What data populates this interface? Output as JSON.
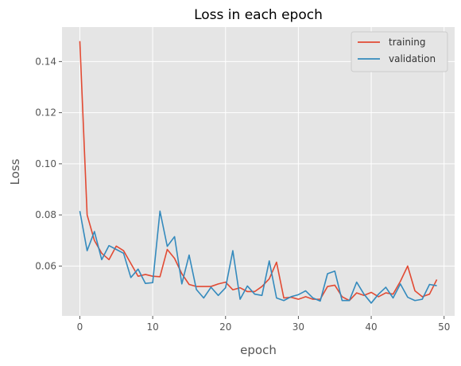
{
  "chart_data": {
    "type": "line",
    "title": "Loss in each epoch",
    "xlabel": "epoch",
    "ylabel": "Loss",
    "xlim": [
      -2.45,
      51.45
    ],
    "ylim": [
      0.0405,
      0.1535
    ],
    "xticks": [
      0,
      10,
      20,
      30,
      40,
      50
    ],
    "yticks": [
      0.06,
      0.08,
      0.1,
      0.12,
      0.14
    ],
    "ytick_labels": [
      "0.06",
      "0.08",
      "0.10",
      "0.12",
      "0.14"
    ],
    "grid": true,
    "legend_position": "top-right",
    "series": [
      {
        "name": "training",
        "color": "#E24A33",
        "x": [
          0,
          1,
          2,
          3,
          4,
          5,
          6,
          7,
          8,
          9,
          10,
          11,
          12,
          13,
          14,
          15,
          16,
          17,
          18,
          19,
          20,
          21,
          22,
          23,
          24,
          25,
          26,
          27,
          28,
          29,
          30,
          31,
          32,
          33,
          34,
          35,
          36,
          37,
          38,
          39,
          40,
          41,
          42,
          43,
          44,
          45,
          46,
          47,
          48,
          49
        ],
        "values": [
          0.148,
          0.08,
          0.07,
          0.065,
          0.0625,
          0.0678,
          0.066,
          0.061,
          0.056,
          0.0567,
          0.056,
          0.0558,
          0.0665,
          0.063,
          0.057,
          0.0528,
          0.052,
          0.052,
          0.052,
          0.053,
          0.0537,
          0.0507,
          0.0515,
          0.05,
          0.05,
          0.052,
          0.055,
          0.0615,
          0.0475,
          0.0478,
          0.047,
          0.048,
          0.047,
          0.047,
          0.052,
          0.0525,
          0.048,
          0.0465,
          0.0495,
          0.0485,
          0.0497,
          0.048,
          0.0495,
          0.049,
          0.054,
          0.06,
          0.0503,
          0.048,
          0.049,
          0.0547
        ]
      },
      {
        "name": "validation",
        "color": "#348ABD",
        "x": [
          0,
          1,
          2,
          3,
          4,
          5,
          6,
          7,
          8,
          9,
          10,
          11,
          12,
          13,
          14,
          15,
          16,
          17,
          18,
          19,
          20,
          21,
          22,
          23,
          24,
          25,
          26,
          27,
          28,
          29,
          30,
          31,
          32,
          33,
          34,
          35,
          36,
          37,
          38,
          39,
          40,
          41,
          42,
          43,
          44,
          45,
          46,
          47,
          48,
          49
        ],
        "values": [
          0.0815,
          0.066,
          0.0735,
          0.0625,
          0.068,
          0.0665,
          0.065,
          0.0555,
          0.0588,
          0.0532,
          0.0535,
          0.0815,
          0.0677,
          0.0715,
          0.053,
          0.0643,
          0.0508,
          0.0475,
          0.0517,
          0.0485,
          0.0515,
          0.066,
          0.047,
          0.0522,
          0.049,
          0.0485,
          0.062,
          0.0475,
          0.0465,
          0.048,
          0.0488,
          0.0503,
          0.0475,
          0.0463,
          0.057,
          0.058,
          0.0465,
          0.0465,
          0.0537,
          0.049,
          0.0455,
          0.049,
          0.0517,
          0.0475,
          0.053,
          0.0478,
          0.0465,
          0.047,
          0.0528,
          0.0523
        ]
      }
    ]
  }
}
